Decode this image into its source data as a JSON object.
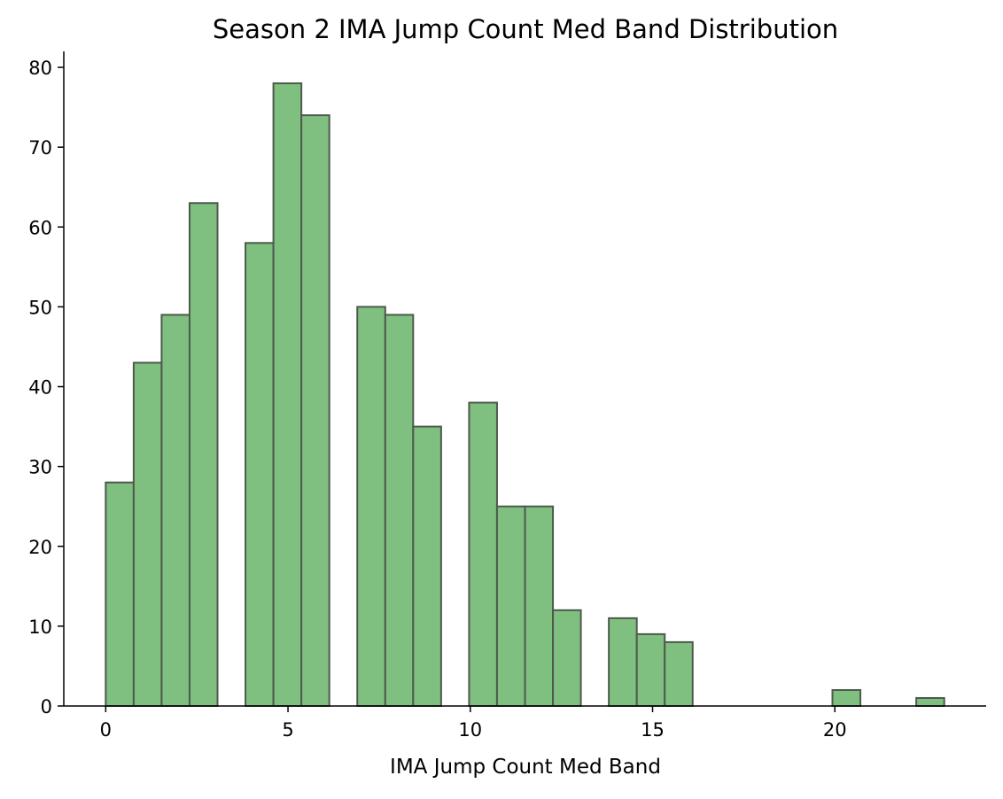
{
  "chart_data": {
    "type": "bar",
    "title": "Season 2 IMA Jump Count Med Band Distribution",
    "xlabel": "IMA Jump Count Med Band",
    "ylabel": "",
    "xlim": [
      -1.15,
      24.15
    ],
    "ylim": [
      0,
      82
    ],
    "xticks": [
      0,
      5,
      10,
      15,
      20
    ],
    "yticks": [
      0,
      10,
      20,
      30,
      40,
      50,
      60,
      70,
      80
    ],
    "grid": false,
    "legend": "none",
    "bar_color": "#7fbf7f",
    "edge_color": "#4d5a4d",
    "bins": [
      {
        "x0": 0.0,
        "x1": 0.767,
        "count": 28
      },
      {
        "x0": 0.767,
        "x1": 1.533,
        "count": 43
      },
      {
        "x0": 1.533,
        "x1": 2.3,
        "count": 49
      },
      {
        "x0": 2.3,
        "x1": 3.067,
        "count": 63
      },
      {
        "x0": 3.833,
        "x1": 4.6,
        "count": 58
      },
      {
        "x0": 4.6,
        "x1": 5.367,
        "count": 78
      },
      {
        "x0": 5.367,
        "x1": 6.133,
        "count": 74
      },
      {
        "x0": 6.9,
        "x1": 7.667,
        "count": 50
      },
      {
        "x0": 7.667,
        "x1": 8.433,
        "count": 49
      },
      {
        "x0": 8.433,
        "x1": 9.2,
        "count": 35
      },
      {
        "x0": 9.967,
        "x1": 10.733,
        "count": 38
      },
      {
        "x0": 10.733,
        "x1": 11.5,
        "count": 25
      },
      {
        "x0": 11.5,
        "x1": 12.267,
        "count": 25
      },
      {
        "x0": 12.267,
        "x1": 13.033,
        "count": 12
      },
      {
        "x0": 13.8,
        "x1": 14.567,
        "count": 11
      },
      {
        "x0": 14.567,
        "x1": 15.333,
        "count": 9
      },
      {
        "x0": 15.333,
        "x1": 16.1,
        "count": 8
      },
      {
        "x0": 19.933,
        "x1": 20.7,
        "count": 2
      },
      {
        "x0": 22.233,
        "x1": 23.0,
        "count": 1
      }
    ]
  }
}
